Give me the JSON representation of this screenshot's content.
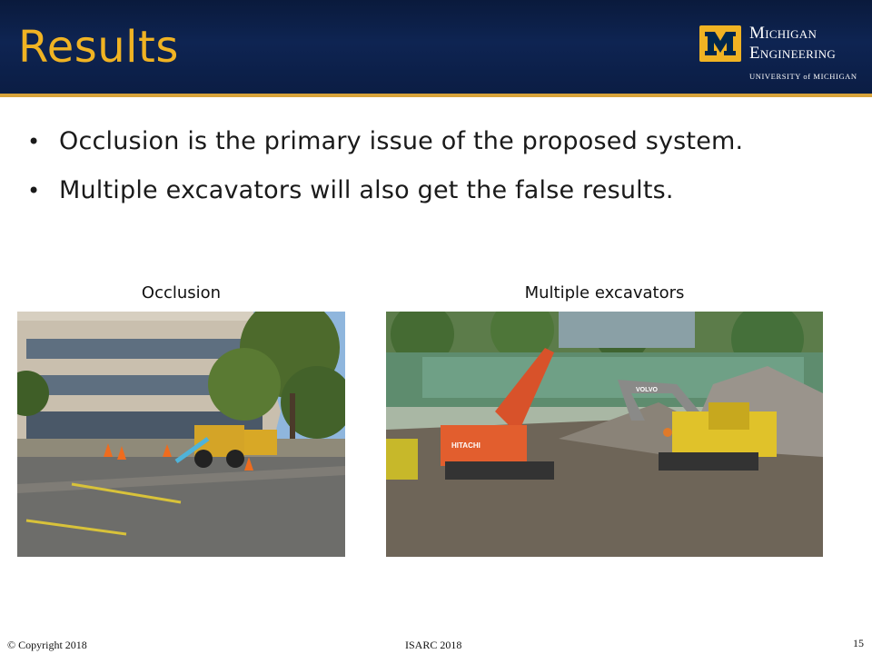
{
  "slide": {
    "title": "Results",
    "bullets": [
      "Occlusion is the primary issue of the proposed system.",
      "Multiple excavators will also get the false results."
    ]
  },
  "logo": {
    "line1": "Michigan",
    "line2": "Engineering",
    "subline": "UNIVERSITY of MICHIGAN",
    "mark": "M"
  },
  "figures": [
    {
      "caption": "Occlusion"
    },
    {
      "caption": "Multiple excavators"
    }
  ],
  "photo_labels": {
    "excavator_brand_1": "HITACHI",
    "excavator_brand_2": "VOLVO"
  },
  "footer": {
    "copyright": "© Copyright 2018",
    "conference": "ISARC 2018",
    "page_number": "15"
  },
  "colors": {
    "header_bg": "#0e2452",
    "title": "#f0b323",
    "accent_line": "#d8a33a"
  }
}
